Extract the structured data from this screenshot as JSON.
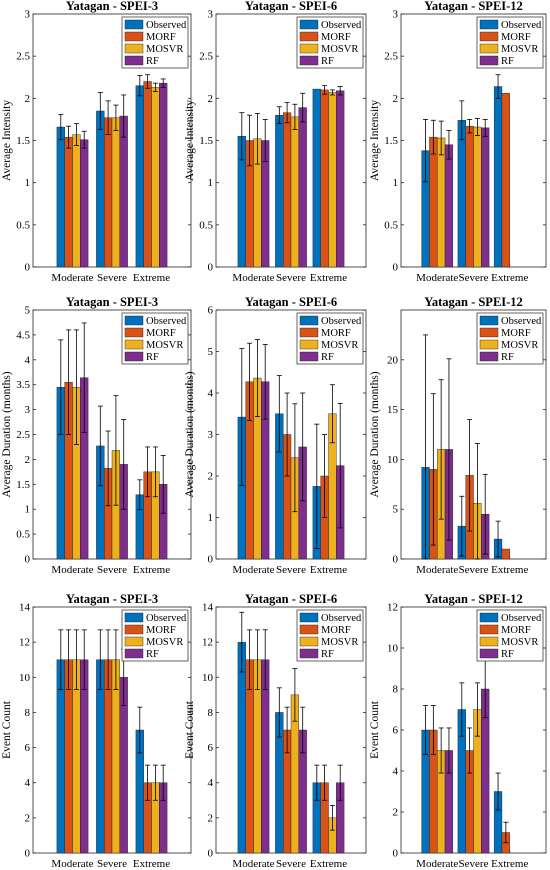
{
  "colors": {
    "Observed": "#0072BD",
    "MORF": "#D95319",
    "MOSVR": "#EDB120",
    "RF": "#7E2F8E"
  },
  "legend_labels": [
    "Observed",
    "MORF",
    "MOSVR",
    "RF"
  ],
  "categories": [
    "Moderate",
    "Severe",
    "Extreme"
  ],
  "chart_data": [
    {
      "type": "bar",
      "title": "Yatagan - SPEI-3",
      "xlabel": "",
      "ylabel": "Average Intensity",
      "ylim": [
        0,
        3
      ],
      "yticks": [
        0,
        0.5,
        1,
        1.5,
        2,
        2.5,
        3
      ],
      "grid": false,
      "legend": "top-right",
      "categories": [
        "Moderate",
        "Severe",
        "Extreme"
      ],
      "series": [
        {
          "name": "Observed",
          "values": [
            1.66,
            1.85,
            2.15
          ],
          "errors": [
            0.15,
            0.22,
            0.12
          ]
        },
        {
          "name": "MORF",
          "values": [
            1.54,
            1.77,
            2.2
          ],
          "errors": [
            0.13,
            0.2,
            0.08
          ]
        },
        {
          "name": "MOSVR",
          "values": [
            1.57,
            1.77,
            2.13
          ],
          "errors": [
            0.13,
            0.15,
            0.05
          ]
        },
        {
          "name": "RF",
          "values": [
            1.51,
            1.79,
            2.18
          ],
          "errors": [
            0.1,
            0.25,
            0.05
          ]
        }
      ]
    },
    {
      "type": "bar",
      "title": "Yatagan - SPEI-6",
      "xlabel": "",
      "ylabel": "Average Intensity",
      "ylim": [
        0,
        3
      ],
      "yticks": [
        0,
        0.5,
        1,
        1.5,
        2,
        2.5,
        3
      ],
      "grid": false,
      "legend": "top-right",
      "categories": [
        "Moderate",
        "Severe",
        "Extreme"
      ],
      "series": [
        {
          "name": "Observed",
          "values": [
            1.55,
            1.8,
            2.11
          ],
          "errors": [
            0.28,
            0.1,
            0.0
          ]
        },
        {
          "name": "MORF",
          "values": [
            1.5,
            1.83,
            2.1
          ],
          "errors": [
            0.3,
            0.12,
            0.05
          ]
        },
        {
          "name": "MOSVR",
          "values": [
            1.52,
            1.78,
            2.07
          ],
          "errors": [
            0.3,
            0.15,
            0.03
          ]
        },
        {
          "name": "RF",
          "values": [
            1.5,
            1.89,
            2.09
          ],
          "errors": [
            0.25,
            0.17,
            0.05
          ]
        }
      ]
    },
    {
      "type": "bar",
      "title": "Yatagan - SPEI-12",
      "xlabel": "",
      "ylabel": "Average Intensity",
      "ylim": [
        0,
        3
      ],
      "yticks": [
        0,
        0.5,
        1,
        1.5,
        2,
        2.5,
        3
      ],
      "grid": false,
      "legend": "top-right",
      "categories": [
        "Moderate",
        "Severe",
        "Extreme"
      ],
      "series": [
        {
          "name": "Observed",
          "values": [
            1.38,
            1.74,
            2.14
          ],
          "errors": [
            0.37,
            0.23,
            0.14
          ]
        },
        {
          "name": "MORF",
          "values": [
            1.54,
            1.67,
            2.06
          ],
          "errors": [
            0.2,
            0.08,
            0.0
          ]
        },
        {
          "name": "MOSVR",
          "values": [
            1.53,
            1.66,
            0
          ],
          "errors": [
            0.2,
            0.1,
            0
          ]
        },
        {
          "name": "RF",
          "values": [
            1.45,
            1.65,
            0
          ],
          "errors": [
            0.17,
            0.1,
            0
          ]
        }
      ]
    },
    {
      "type": "bar",
      "title": "Yatagan - SPEI-3",
      "xlabel": "",
      "ylabel": "Average Duration (months)",
      "ylim": [
        0,
        5
      ],
      "yticks": [
        0,
        0.5,
        1,
        1.5,
        2,
        2.5,
        3,
        3.5,
        4,
        4.5,
        5
      ],
      "grid": false,
      "legend": "top-right",
      "categories": [
        "Moderate",
        "Severe",
        "Extreme"
      ],
      "series": [
        {
          "name": "Observed",
          "values": [
            3.45,
            2.27,
            1.29
          ],
          "errors": [
            0.95,
            0.8,
            0.3
          ]
        },
        {
          "name": "MORF",
          "values": [
            3.55,
            1.82,
            1.75
          ],
          "errors": [
            1.05,
            0.75,
            0.5
          ]
        },
        {
          "name": "MOSVR",
          "values": [
            3.45,
            2.18,
            1.75
          ],
          "errors": [
            1.15,
            1.1,
            0.5
          ]
        },
        {
          "name": "RF",
          "values": [
            3.64,
            1.9,
            1.5
          ],
          "errors": [
            1.1,
            0.9,
            0.58
          ]
        }
      ]
    },
    {
      "type": "bar",
      "title": "Yatagan - SPEI-6",
      "xlabel": "",
      "ylabel": "Average Duration (months)",
      "ylim": [
        0,
        6
      ],
      "yticks": [
        0,
        1,
        2,
        3,
        4,
        5,
        6
      ],
      "grid": false,
      "legend": "top-right",
      "categories": [
        "Moderate",
        "Severe",
        "Extreme"
      ],
      "series": [
        {
          "name": "Observed",
          "values": [
            3.42,
            3.5,
            1.75
          ],
          "errors": [
            1.65,
            0.92,
            1.5
          ]
        },
        {
          "name": "MORF",
          "values": [
            4.27,
            3.0,
            2.0
          ],
          "errors": [
            0.93,
            1.0,
            1.0
          ]
        },
        {
          "name": "MOSVR",
          "values": [
            4.36,
            2.44,
            3.5
          ],
          "errors": [
            0.93,
            1.3,
            0.7
          ]
        },
        {
          "name": "RF",
          "values": [
            4.27,
            2.7,
            2.25
          ],
          "errors": [
            0.9,
            1.3,
            1.5
          ]
        }
      ]
    },
    {
      "type": "bar",
      "title": "Yatagan - SPEI-12",
      "xlabel": "",
      "ylabel": "Average Duration (months)",
      "ylim": [
        0,
        25
      ],
      "yticks": [
        0,
        5,
        10,
        15,
        20
      ],
      "grid": false,
      "legend": "top-right",
      "categories": [
        "Moderate",
        "Severe",
        "Extreme"
      ],
      "series": [
        {
          "name": "Observed",
          "values": [
            9.2,
            3.3,
            2.0
          ],
          "errors": [
            13.3,
            3.0,
            1.8
          ]
        },
        {
          "name": "MORF",
          "values": [
            9.0,
            8.4,
            1.0
          ],
          "errors": [
            7.6,
            5.6,
            0.0
          ]
        },
        {
          "name": "MOSVR",
          "values": [
            11.0,
            5.6,
            0
          ],
          "errors": [
            7.0,
            6.0,
            0
          ]
        },
        {
          "name": "RF",
          "values": [
            11.0,
            4.5,
            0
          ],
          "errors": [
            9.1,
            4.0,
            0
          ]
        }
      ]
    },
    {
      "type": "bar",
      "title": "Yatagan - SPEI-3",
      "xlabel": "",
      "ylabel": "Event Count",
      "ylim": [
        0,
        14
      ],
      "yticks": [
        0,
        2,
        4,
        6,
        8,
        10,
        12,
        14
      ],
      "grid": false,
      "legend": "top-right",
      "categories": [
        "Moderate",
        "Severe",
        "Extreme"
      ],
      "series": [
        {
          "name": "Observed",
          "values": [
            11,
            11,
            7
          ],
          "errors": [
            1.7,
            1.7,
            1.3
          ]
        },
        {
          "name": "MORF",
          "values": [
            11,
            11,
            4
          ],
          "errors": [
            1.7,
            1.7,
            1.0
          ]
        },
        {
          "name": "MOSVR",
          "values": [
            11,
            11,
            4
          ],
          "errors": [
            1.7,
            1.7,
            1.0
          ]
        },
        {
          "name": "RF",
          "values": [
            11,
            10,
            4
          ],
          "errors": [
            1.7,
            1.6,
            1.0
          ]
        }
      ]
    },
    {
      "type": "bar",
      "title": "Yatagan - SPEI-6",
      "xlabel": "",
      "ylabel": "Event Count",
      "ylim": [
        0,
        14
      ],
      "yticks": [
        0,
        2,
        4,
        6,
        8,
        10,
        12,
        14
      ],
      "grid": false,
      "legend": "top-right",
      "categories": [
        "Moderate",
        "Severe",
        "Extreme"
      ],
      "series": [
        {
          "name": "Observed",
          "values": [
            12,
            8,
            4
          ],
          "errors": [
            1.7,
            1.4,
            1.0
          ]
        },
        {
          "name": "MORF",
          "values": [
            11,
            7,
            4
          ],
          "errors": [
            1.7,
            1.3,
            1.0
          ]
        },
        {
          "name": "MOSVR",
          "values": [
            11,
            9,
            2
          ],
          "errors": [
            1.7,
            1.5,
            0.7
          ]
        },
        {
          "name": "RF",
          "values": [
            11,
            7,
            4
          ],
          "errors": [
            1.7,
            1.3,
            1.0
          ]
        }
      ]
    },
    {
      "type": "bar",
      "title": "Yatagan - SPEI-12",
      "xlabel": "",
      "ylabel": "Event Count",
      "ylim": [
        0,
        12
      ],
      "yticks": [
        0,
        2,
        4,
        6,
        8,
        10,
        12
      ],
      "grid": false,
      "legend": "top-right",
      "categories": [
        "Moderate",
        "Severe",
        "Extreme"
      ],
      "series": [
        {
          "name": "Observed",
          "values": [
            6,
            7,
            3
          ],
          "errors": [
            1.2,
            1.3,
            0.9
          ]
        },
        {
          "name": "MORF",
          "values": [
            6,
            5,
            1
          ],
          "errors": [
            1.2,
            1.1,
            0.5
          ]
        },
        {
          "name": "MOSVR",
          "values": [
            5,
            7,
            0
          ],
          "errors": [
            1.1,
            1.3,
            0
          ]
        },
        {
          "name": "RF",
          "values": [
            5,
            8,
            0
          ],
          "errors": [
            1.1,
            1.4,
            0
          ]
        }
      ]
    }
  ]
}
